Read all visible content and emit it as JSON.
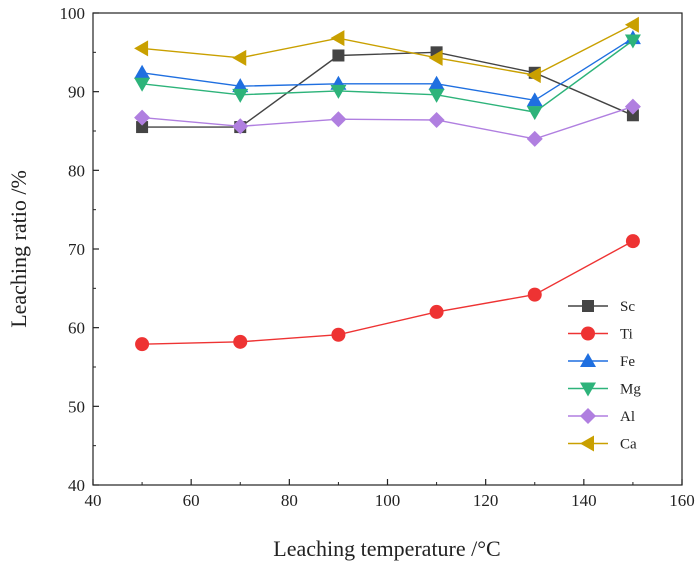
{
  "chart_data": {
    "type": "line",
    "title": "",
    "xlabel": "Leaching temperature /°C",
    "ylabel": "Leaching ratio /%",
    "xlim": [
      40,
      160
    ],
    "ylim": [
      40,
      100
    ],
    "xticks": [
      40,
      60,
      80,
      100,
      120,
      140,
      160
    ],
    "yticks": [
      40,
      50,
      60,
      70,
      80,
      90,
      100
    ],
    "x": [
      50,
      70,
      90,
      110,
      130,
      150
    ],
    "legend_position": "center-right",
    "series": [
      {
        "name": "Sc",
        "values": [
          85.5,
          85.5,
          94.6,
          95.0,
          92.4,
          87.0
        ],
        "color": "#444444",
        "marker": "square"
      },
      {
        "name": "Ti",
        "values": [
          57.9,
          58.2,
          59.1,
          62.0,
          64.2,
          71.0
        ],
        "color": "#ee3333",
        "marker": "circle"
      },
      {
        "name": "Fe",
        "values": [
          92.4,
          90.7,
          91.0,
          91.0,
          88.9,
          96.8
        ],
        "color": "#1f6fe0",
        "marker": "triangle-up"
      },
      {
        "name": "Mg",
        "values": [
          91.0,
          89.6,
          90.1,
          89.6,
          87.4,
          96.5
        ],
        "color": "#2db37a",
        "marker": "triangle-down"
      },
      {
        "name": "Al",
        "values": [
          86.7,
          85.6,
          86.5,
          86.4,
          84.0,
          88.1
        ],
        "color": "#b07fe0",
        "marker": "diamond"
      },
      {
        "name": "Ca",
        "values": [
          95.5,
          94.3,
          96.8,
          94.3,
          92.1,
          98.5
        ],
        "color": "#c9a000",
        "marker": "triangle-left"
      }
    ]
  }
}
